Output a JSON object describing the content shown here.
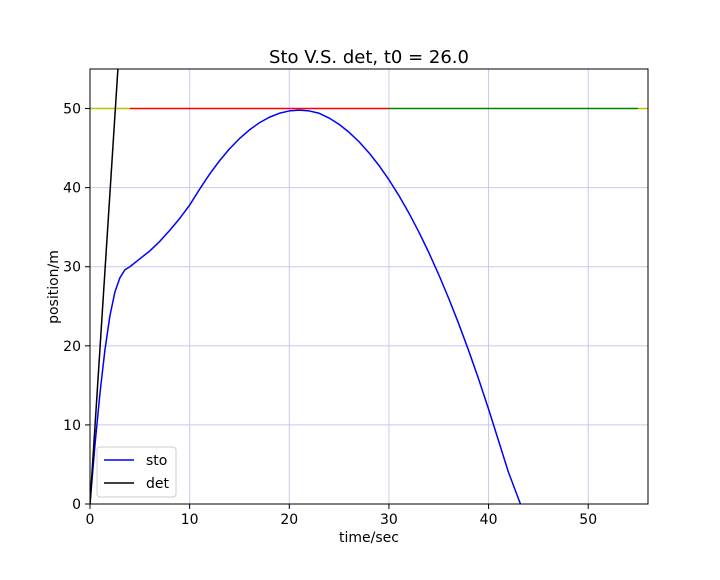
{
  "chart_data": {
    "type": "line",
    "title": "Sto V.S. det, t0 = 26.0",
    "xlabel": "time/sec",
    "ylabel": "position/m",
    "xlim": [
      0,
      56
    ],
    "ylim": [
      0,
      55
    ],
    "xticks": [
      0,
      10,
      20,
      30,
      40,
      50
    ],
    "yticks": [
      0,
      10,
      20,
      30,
      40,
      50
    ],
    "grid": true,
    "grid_color": "#c8c8f0",
    "legend_position": "lower-left",
    "legend": [
      {
        "label": "sto",
        "color": "#0000ff"
      },
      {
        "label": "det",
        "color": "#000000"
      }
    ],
    "series": [
      {
        "name": "sto",
        "color": "#0000ff",
        "points": [
          [
            0,
            0
          ],
          [
            0.5,
            7.5
          ],
          [
            1,
            14
          ],
          [
            1.5,
            19.5
          ],
          [
            2,
            23.8
          ],
          [
            2.5,
            26.8
          ],
          [
            3,
            28.6
          ],
          [
            3.5,
            29.6
          ],
          [
            4,
            30.0
          ],
          [
            5,
            31.0
          ],
          [
            6,
            32.0
          ],
          [
            7,
            33.2
          ],
          [
            8,
            34.6
          ],
          [
            9,
            36.1
          ],
          [
            10,
            37.8
          ],
          [
            11,
            39.8
          ],
          [
            12,
            41.7
          ],
          [
            13,
            43.4
          ],
          [
            14,
            44.9
          ],
          [
            15,
            46.2
          ],
          [
            16,
            47.3
          ],
          [
            17,
            48.2
          ],
          [
            18,
            48.9
          ],
          [
            19,
            49.4
          ],
          [
            20,
            49.7
          ],
          [
            21,
            49.8
          ],
          [
            22,
            49.7
          ],
          [
            23,
            49.4
          ],
          [
            24,
            48.8
          ],
          [
            25,
            48.0
          ],
          [
            26,
            47.0
          ],
          [
            27,
            45.8
          ],
          [
            28,
            44.4
          ],
          [
            29,
            42.8
          ],
          [
            30,
            41.0
          ],
          [
            31,
            39.0
          ],
          [
            32,
            36.8
          ],
          [
            33,
            34.4
          ],
          [
            34,
            31.8
          ],
          [
            35,
            29.0
          ],
          [
            36,
            26.0
          ],
          [
            37,
            22.8
          ],
          [
            38,
            19.4
          ],
          [
            39,
            15.8
          ],
          [
            40,
            12.0
          ],
          [
            41,
            8.0
          ],
          [
            42,
            4.0
          ],
          [
            43.2,
            0
          ]
        ]
      },
      {
        "name": "det",
        "color": "#000000",
        "points": [
          [
            0,
            0
          ],
          [
            2.8,
            55
          ]
        ]
      }
    ],
    "reference_segments": [
      {
        "color": "#bfbf00",
        "y": 50,
        "x": [
          0,
          4
        ]
      },
      {
        "color": "#ff0000",
        "y": 50,
        "x": [
          4,
          30
        ]
      },
      {
        "color": "#008000",
        "y": 50,
        "x": [
          30,
          55
        ]
      },
      {
        "color": "#bfbf00",
        "y": 50,
        "x": [
          55,
          56
        ]
      }
    ]
  }
}
